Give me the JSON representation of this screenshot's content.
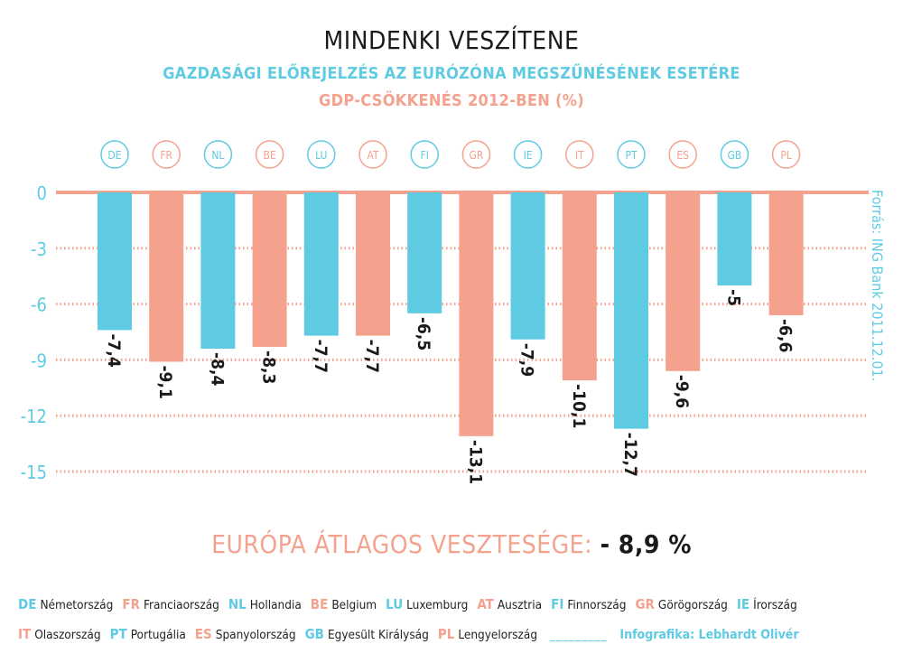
{
  "title": "MINDENKI VESZÍTENE",
  "subtitle": "GAZDASÁGI ELŐREJELZÉS AZ EURÓZÓNA MEGSZŰNÉSÉNEK ESETÉRE",
  "subtitle2": "GDP-CSÖKKENÉS 2012-BEN (%)",
  "source": "Forrás: ING Bank 2011.12.01.",
  "average": {
    "label": "EURÓPA ÁTLAGOS VESZTESÉGE:",
    "value": "- 8,9 %"
  },
  "colors": {
    "blue": "#5fcbe3",
    "salmon": "#f4a28e",
    "text": "#1a1a1a"
  },
  "chart_data": {
    "type": "bar",
    "title": "GDP-CSÖKKENÉS 2012-BEN (%)",
    "categories": [
      "DE",
      "FR",
      "NL",
      "BE",
      "LU",
      "AT",
      "FI",
      "GR",
      "IE",
      "IT",
      "PT",
      "ES",
      "GB",
      "PL"
    ],
    "values": [
      -7.4,
      -9.1,
      -8.4,
      -8.3,
      -7.7,
      -7.7,
      -6.5,
      -13.1,
      -7.9,
      -10.1,
      -12.7,
      -9.6,
      -5,
      -6.6
    ],
    "value_labels": [
      "-7,4",
      "-9,1",
      "-8,4",
      "-8,3",
      "-7,7",
      "-7,7",
      "-6,5",
      "-13,1",
      "-7,9",
      "-10,1",
      "-12,7",
      "-9,6",
      "-5",
      "-6,6"
    ],
    "bar_colors": [
      "blue",
      "salmon",
      "blue",
      "salmon",
      "blue",
      "salmon",
      "blue",
      "salmon",
      "blue",
      "salmon",
      "blue",
      "salmon",
      "blue",
      "salmon"
    ],
    "yticks": [
      0,
      -3,
      -6,
      -9,
      -12,
      -15
    ],
    "ytick_labels": [
      "0",
      "-3",
      "-6",
      "-9",
      "-12",
      "-15"
    ],
    "ylim": [
      -15,
      0
    ]
  },
  "legend": {
    "row1": [
      {
        "code": "DE",
        "name": "Németország",
        "color": "blue"
      },
      {
        "code": "FR",
        "name": "Franciaország",
        "color": "salmon"
      },
      {
        "code": "NL",
        "name": "Hollandia",
        "color": "blue"
      },
      {
        "code": "BE",
        "name": "Belgium",
        "color": "salmon"
      },
      {
        "code": "LU",
        "name": "Luxemburg",
        "color": "blue"
      },
      {
        "code": "AT",
        "name": "Ausztria",
        "color": "salmon"
      },
      {
        "code": "FI",
        "name": "Finnország",
        "color": "blue"
      },
      {
        "code": "GR",
        "name": "Görögország",
        "color": "salmon"
      },
      {
        "code": "IE",
        "name": "Írország",
        "color": "blue"
      }
    ],
    "row2": [
      {
        "code": "IT",
        "name": "Olaszország",
        "color": "salmon"
      },
      {
        "code": "PT",
        "name": "Portugália",
        "color": "blue"
      },
      {
        "code": "ES",
        "name": "Spanyolország",
        "color": "salmon"
      },
      {
        "code": "GB",
        "name": "Egyesült Királyság",
        "color": "blue"
      },
      {
        "code": "PL",
        "name": "Lengyelország",
        "color": "salmon"
      }
    ],
    "blank": "_________",
    "credit": "Infografika: Lebhardt Olivér"
  }
}
